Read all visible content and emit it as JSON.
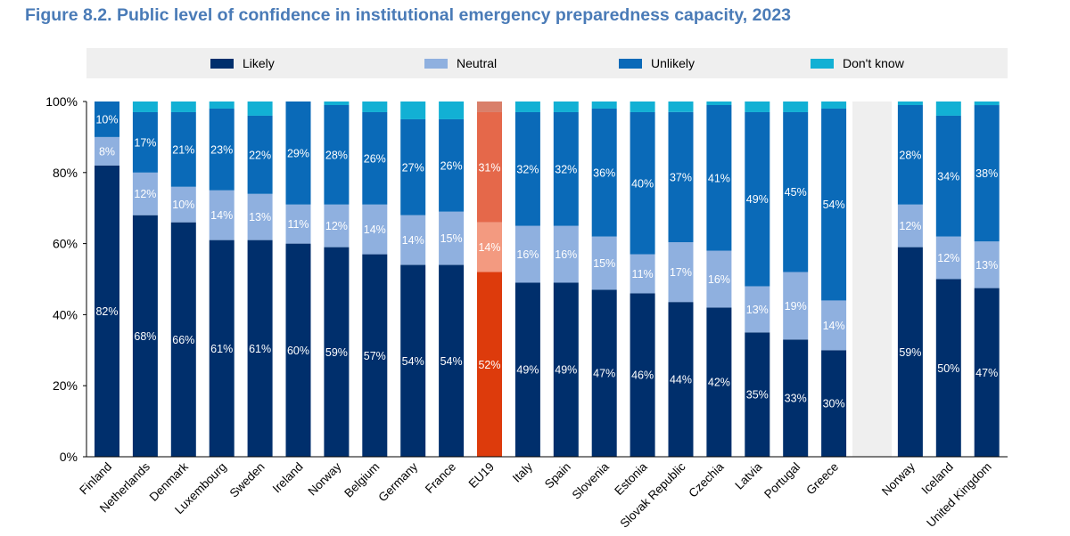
{
  "title": "Figure 8.2. Public level of confidence in institutional emergency preparedness capacity, 2023",
  "colors": {
    "likely": "#002f6c",
    "neutral": "#8fb0df",
    "unlikely": "#0a6ab8",
    "dontknow": "#12b0d4",
    "eu_likely": "#dd3b0c",
    "eu_neutral": "#f39a80",
    "eu_unlikely": "#e5684a",
    "eu_dontknow": "#d97f6a",
    "gap": "#efefef"
  },
  "chart_data": {
    "type": "bar",
    "stacked": true,
    "ylim": [
      0,
      100
    ],
    "yticks": [
      "0%",
      "20%",
      "40%",
      "60%",
      "80%",
      "100%"
    ],
    "legend": [
      "Likely",
      "Neutral",
      "Unlikely",
      "Don't know"
    ],
    "legend_placement": "top",
    "categories": [
      "Finland",
      "Netherlands",
      "Denmark",
      "Luxembourg",
      "Sweden",
      "Ireland",
      "Norway",
      "Belgium",
      "Germany",
      "France",
      "EU19",
      "Italy",
      "Spain",
      "Slovenia",
      "Estonia",
      "Slovak Republic",
      "Czechia",
      "Latvia",
      "Portugal",
      "Greece",
      "",
      "Norway",
      "Iceland",
      "United Kingdom"
    ],
    "series": [
      {
        "name": "Likely",
        "values": [
          82,
          68,
          66,
          61,
          61,
          60,
          59,
          57,
          54,
          54,
          52,
          49,
          49,
          47,
          46,
          44,
          42,
          35,
          33,
          30,
          null,
          59,
          50,
          47
        ]
      },
      {
        "name": "Neutral",
        "values": [
          8,
          12,
          10,
          14,
          13,
          11,
          12,
          14,
          14,
          15,
          14,
          16,
          16,
          15,
          11,
          17,
          16,
          13,
          19,
          14,
          null,
          12,
          12,
          13
        ]
      },
      {
        "name": "Unlikely",
        "values": [
          10,
          17,
          21,
          23,
          22,
          29,
          28,
          26,
          27,
          26,
          31,
          32,
          32,
          36,
          40,
          37,
          41,
          49,
          45,
          54,
          null,
          28,
          34,
          38
        ]
      },
      {
        "name": "Don't know",
        "values": [
          0,
          3,
          3,
          2,
          4,
          0,
          1,
          3,
          5,
          5,
          3,
          3,
          3,
          2,
          3,
          3,
          1,
          3,
          3,
          2,
          null,
          1,
          4,
          1
        ]
      }
    ],
    "labels": {
      "Likely": [
        "82%",
        "68%",
        "66%",
        "61%",
        "61%",
        "60%",
        "59%",
        "57%",
        "54%",
        "54%",
        "52%",
        "49%",
        "49%",
        "47%",
        "46%",
        "44%",
        "42%",
        "35%",
        "33%",
        "30%",
        "",
        "59%",
        "50%",
        "47%"
      ],
      "Neutral": [
        "8%",
        "12%",
        "10%",
        "14%",
        "13%",
        "11%",
        "12%",
        "14%",
        "14%",
        "15%",
        "14%",
        "16%",
        "16%",
        "15%",
        "11%",
        "17%",
        "16%",
        "13%",
        "19%",
        "14%",
        "",
        "12%",
        "12%",
        "13%"
      ],
      "Unlikely": [
        "10%",
        "17%",
        "21%",
        "23%",
        "22%",
        "29%",
        "28%",
        "26%",
        "27%",
        "26%",
        "31%",
        "32%",
        "32%",
        "36%",
        "40%",
        "37%",
        "41%",
        "49%",
        "45%",
        "54%",
        "",
        "28%",
        "34%",
        "38%"
      ]
    },
    "highlight": "EU19",
    "grid": false
  }
}
